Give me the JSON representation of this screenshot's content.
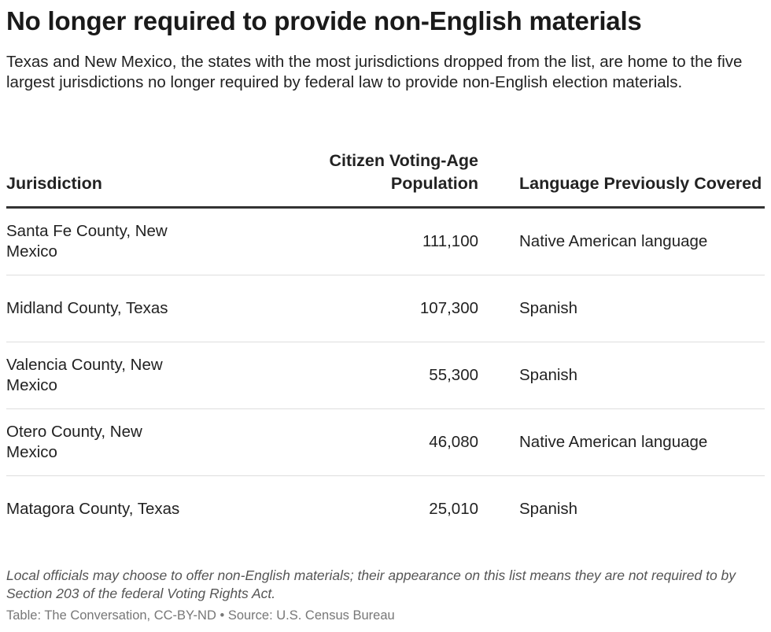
{
  "chart_data": {
    "type": "table",
    "title": "No longer required to provide non-English materials",
    "subtitle": "Texas and New Mexico, the states with the most jurisdictions dropped from the list, are home to the five largest jurisdictions no longer required by federal law to provide non-English election materials.",
    "columns": [
      "Jurisdiction",
      "Citizen Voting-Age Population",
      "Language Previously Covered"
    ],
    "rows": [
      {
        "jurisdiction": "Santa Fe County, New Mexico",
        "population": "111,100",
        "language": "Native American language"
      },
      {
        "jurisdiction": "Midland County, Texas",
        "population": "107,300",
        "language": "Spanish"
      },
      {
        "jurisdiction": "Valencia County, New Mexico",
        "population": "55,300",
        "language": "Spanish"
      },
      {
        "jurisdiction": "Otero County, New Mexico",
        "population": "46,080",
        "language": "Native American language"
      },
      {
        "jurisdiction": "Matagora County, Texas",
        "population": "25,010",
        "language": "Spanish"
      }
    ],
    "note": "Local officials may choose to offer non-English materials; their appearance on this list means they are not required to by Section 203 of the federal Voting Rights Act.",
    "source": "Table: The Conversation, CC-BY-ND • Source: U.S. Census Bureau"
  }
}
